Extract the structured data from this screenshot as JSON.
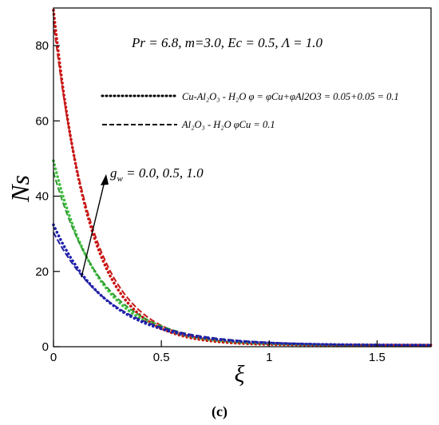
{
  "chart_data": {
    "type": "line",
    "title": "",
    "xlabel": "ξ",
    "ylabel": "Ns",
    "xlim": [
      0,
      1.75
    ],
    "ylim": [
      0,
      90
    ],
    "x_ticks": [
      "0",
      "0.5",
      "1",
      "1.5"
    ],
    "x_tick_values": [
      0,
      0.5,
      1,
      1.5
    ],
    "y_ticks": [
      "0",
      "20",
      "40",
      "60",
      "80"
    ],
    "y_tick_values": [
      0,
      20,
      40,
      60,
      80
    ],
    "grid": false,
    "parameters_text": "Pr = 6.8, m=3.0, Ec = 0.5, Λ = 1.0",
    "arrow_annotation": "g = 0.0, 0.5, 1.0",
    "arrow_annotation_base": "g",
    "arrow_annotation_sub": "w",
    "arrow_annotation_rest": " = 0.0, 0.5, 1.0",
    "legend": [
      {
        "style": "dotted",
        "text": "Cu-Al₂O₃ - H₂O φ = φCu+φAl2O3 = 0.05+0.05 = 0.1"
      },
      {
        "style": "dashed",
        "text": "Al₂O₃ - H₂O φCu = 0.1"
      }
    ],
    "panel_label": "(c)",
    "colors": {
      "gw_0": "#1f1fa0",
      "gw_0_5": "#2f9a2f",
      "gw_1": "#c41a1a",
      "gw_0_dot": "#2020b0",
      "gw_0_5_dot": "#40c040",
      "gw_1_dot": "#cc1010"
    },
    "series": [
      {
        "style": "dotted",
        "g_w": 1.0,
        "color": "#cc1010",
        "Ns0": 89,
        "decay": 6.0
      },
      {
        "style": "dashed",
        "g_w": 1.0,
        "color": "#c41a1a",
        "Ns0": 86,
        "decay": 5.6
      },
      {
        "style": "dotted",
        "g_w": 0.5,
        "color": "#40c040",
        "Ns0": 49,
        "decay": 4.8
      },
      {
        "style": "dashed",
        "g_w": 0.5,
        "color": "#2f9a2f",
        "Ns0": 46,
        "decay": 4.4
      },
      {
        "style": "dotted",
        "g_w": 0.0,
        "color": "#2020b0",
        "Ns0": 32,
        "decay": 4.0
      },
      {
        "style": "dashed",
        "g_w": 0.0,
        "color": "#1f1fa0",
        "Ns0": 30,
        "decay": 3.7
      }
    ]
  }
}
